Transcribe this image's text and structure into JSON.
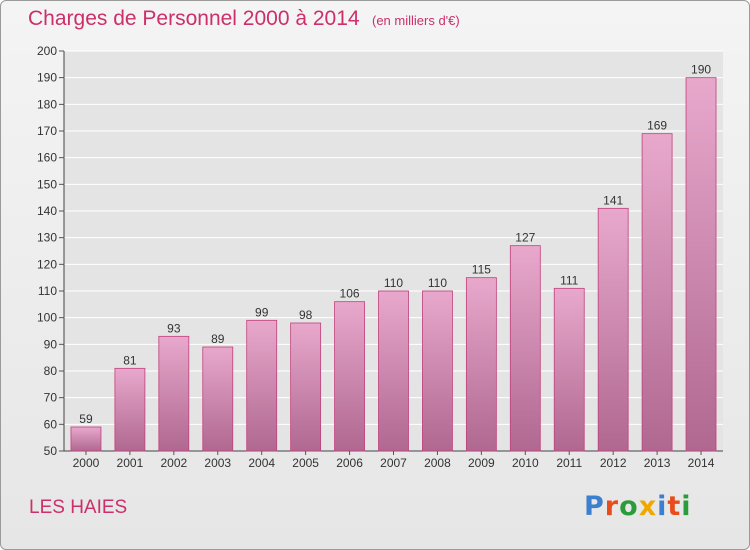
{
  "header": {
    "title": "Charges de Personnel 2000 à 2014",
    "subtitle": "(en milliers d'€)"
  },
  "footer": {
    "place": "LES HAIES",
    "brand_letters": [
      "P",
      "r",
      "o",
      "x",
      "i",
      "t",
      "i"
    ],
    "brand_colors": [
      "#3a7fd0",
      "#e84b1c",
      "#2a9d3a",
      "#f0a800",
      "#3a7fd0",
      "#e84b1c",
      "#2a9d3a"
    ]
  },
  "chart_data": {
    "type": "bar",
    "title": "Charges de Personnel 2000 à 2014",
    "subtitle": "(en milliers d'€)",
    "categories": [
      "2000",
      "2001",
      "2002",
      "2003",
      "2004",
      "2005",
      "2006",
      "2007",
      "2008",
      "2009",
      "2010",
      "2011",
      "2012",
      "2013",
      "2014"
    ],
    "values": [
      59,
      81,
      93,
      89,
      99,
      98,
      106,
      110,
      110,
      115,
      127,
      111,
      141,
      169,
      190
    ],
    "ylim": [
      50,
      200
    ],
    "yticks": [
      50,
      60,
      70,
      80,
      90,
      100,
      110,
      120,
      130,
      140,
      150,
      160,
      170,
      180,
      190,
      200
    ],
    "grid": true,
    "colors": {
      "bar_top": "#e8a8cc",
      "bar_bottom": "#b06890",
      "bar_stroke": "#c0407c",
      "grid": "#ffffff",
      "text": "#333333",
      "accent": "#cc2f6a"
    }
  }
}
